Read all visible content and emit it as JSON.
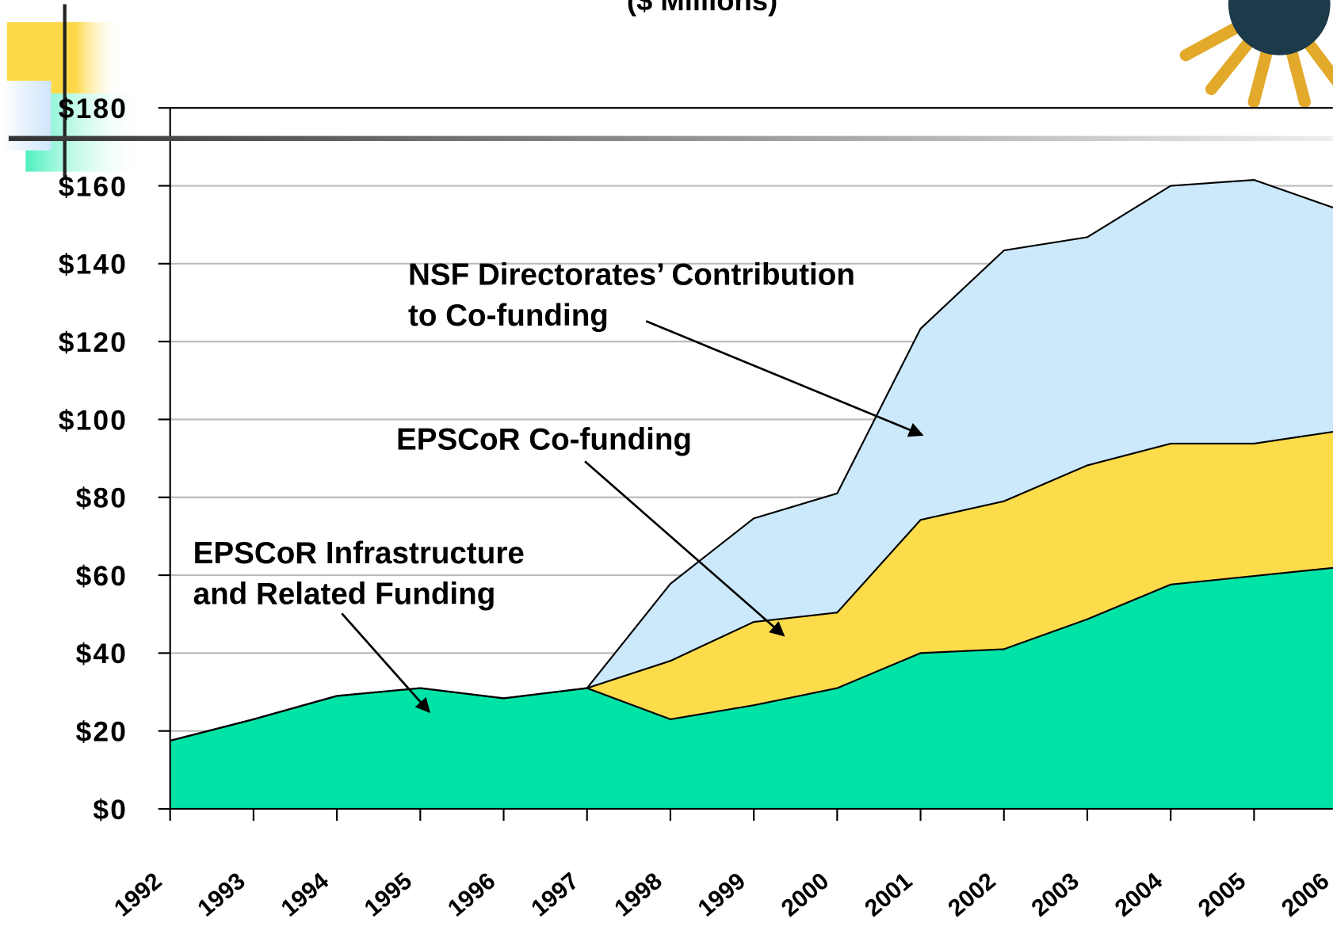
{
  "chart_data": {
    "type": "stacked-area",
    "title": "($ Millions)",
    "categories": [
      "1992",
      "1993",
      "1994",
      "1995",
      "1996",
      "1997",
      "1998",
      "1999",
      "2000",
      "2001",
      "2002",
      "2003",
      "2004",
      "2005",
      "2006"
    ],
    "series": [
      {
        "label": [
          "EPSCoR Infrastructure",
          "and Related Funding"
        ],
        "color": "#00e3a6",
        "values": [
          17.5,
          23,
          29,
          31,
          28.4,
          31,
          23,
          26.6,
          31,
          40,
          41,
          48.7,
          57.6,
          59.8,
          62
        ]
      },
      {
        "label": [
          "EPSCoR Co-funding"
        ],
        "color": "#fddc4b",
        "values": [
          0,
          0,
          0,
          0,
          0,
          0,
          15,
          21.4,
          19.4,
          34.2,
          38,
          39.5,
          36.2,
          34,
          35
        ]
      },
      {
        "label": [
          "NSF Directorates’ Contribution",
          "to Co-funding"
        ],
        "color": "#cce9fb",
        "values": [
          0,
          0,
          0,
          0,
          0,
          0,
          19.8,
          26.6,
          30.6,
          49.1,
          64.4,
          58.6,
          66.2,
          67.7,
          57
        ]
      }
    ],
    "ylim": [
      0,
      180
    ],
    "yticks": [
      {
        "value": 0,
        "label": "$0"
      },
      {
        "value": 20,
        "label": "$20"
      },
      {
        "value": 40,
        "label": "$40"
      },
      {
        "value": 60,
        "label": "$60"
      },
      {
        "value": 80,
        "label": "$80"
      },
      {
        "value": 100,
        "label": "$100"
      },
      {
        "value": 120,
        "label": "$120"
      },
      {
        "value": 140,
        "label": "$140"
      },
      {
        "value": 160,
        "label": "$160"
      },
      {
        "value": 180,
        "label": "$180"
      }
    ],
    "grid": true
  }
}
